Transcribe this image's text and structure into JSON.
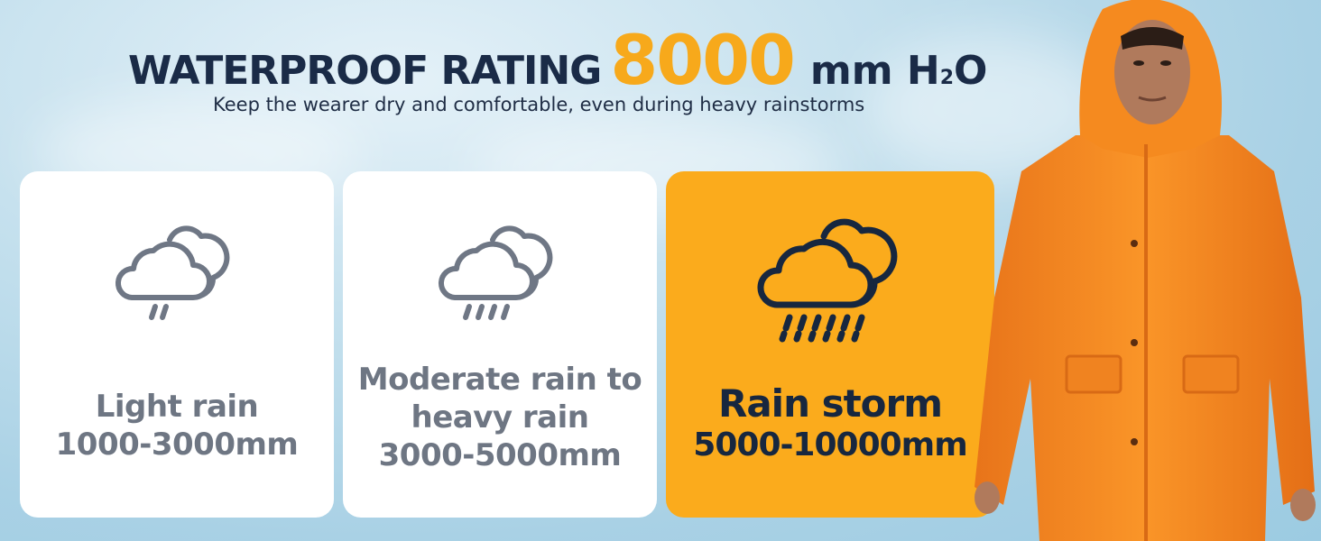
{
  "headline": {
    "prefix": "WATERPROOF RATING",
    "value": "8000",
    "unit_main": "mm H",
    "unit_sub": "2",
    "unit_suffix": "O"
  },
  "subtitle": "Keep the wearer dry and comfortable, even during heavy rainstorms",
  "cards": [
    {
      "name": "Light rain",
      "range": "1000-3000mm",
      "icon": "light-rain-cloud-icon"
    },
    {
      "name_line1": "Moderate rain to",
      "name_line2": "heavy rain",
      "range": "3000-5000mm",
      "icon": "moderate-rain-cloud-icon"
    },
    {
      "name": "Rain storm",
      "range": "5000-10000mm",
      "icon": "rain-storm-cloud-icon",
      "highlighted": true
    }
  ],
  "colors": {
    "accent": "#f7a91b",
    "card_highlight": "#fbab1c",
    "navy": "#1a2b47",
    "gray_text": "#6e7683",
    "raincoat": "#f58a1f"
  }
}
